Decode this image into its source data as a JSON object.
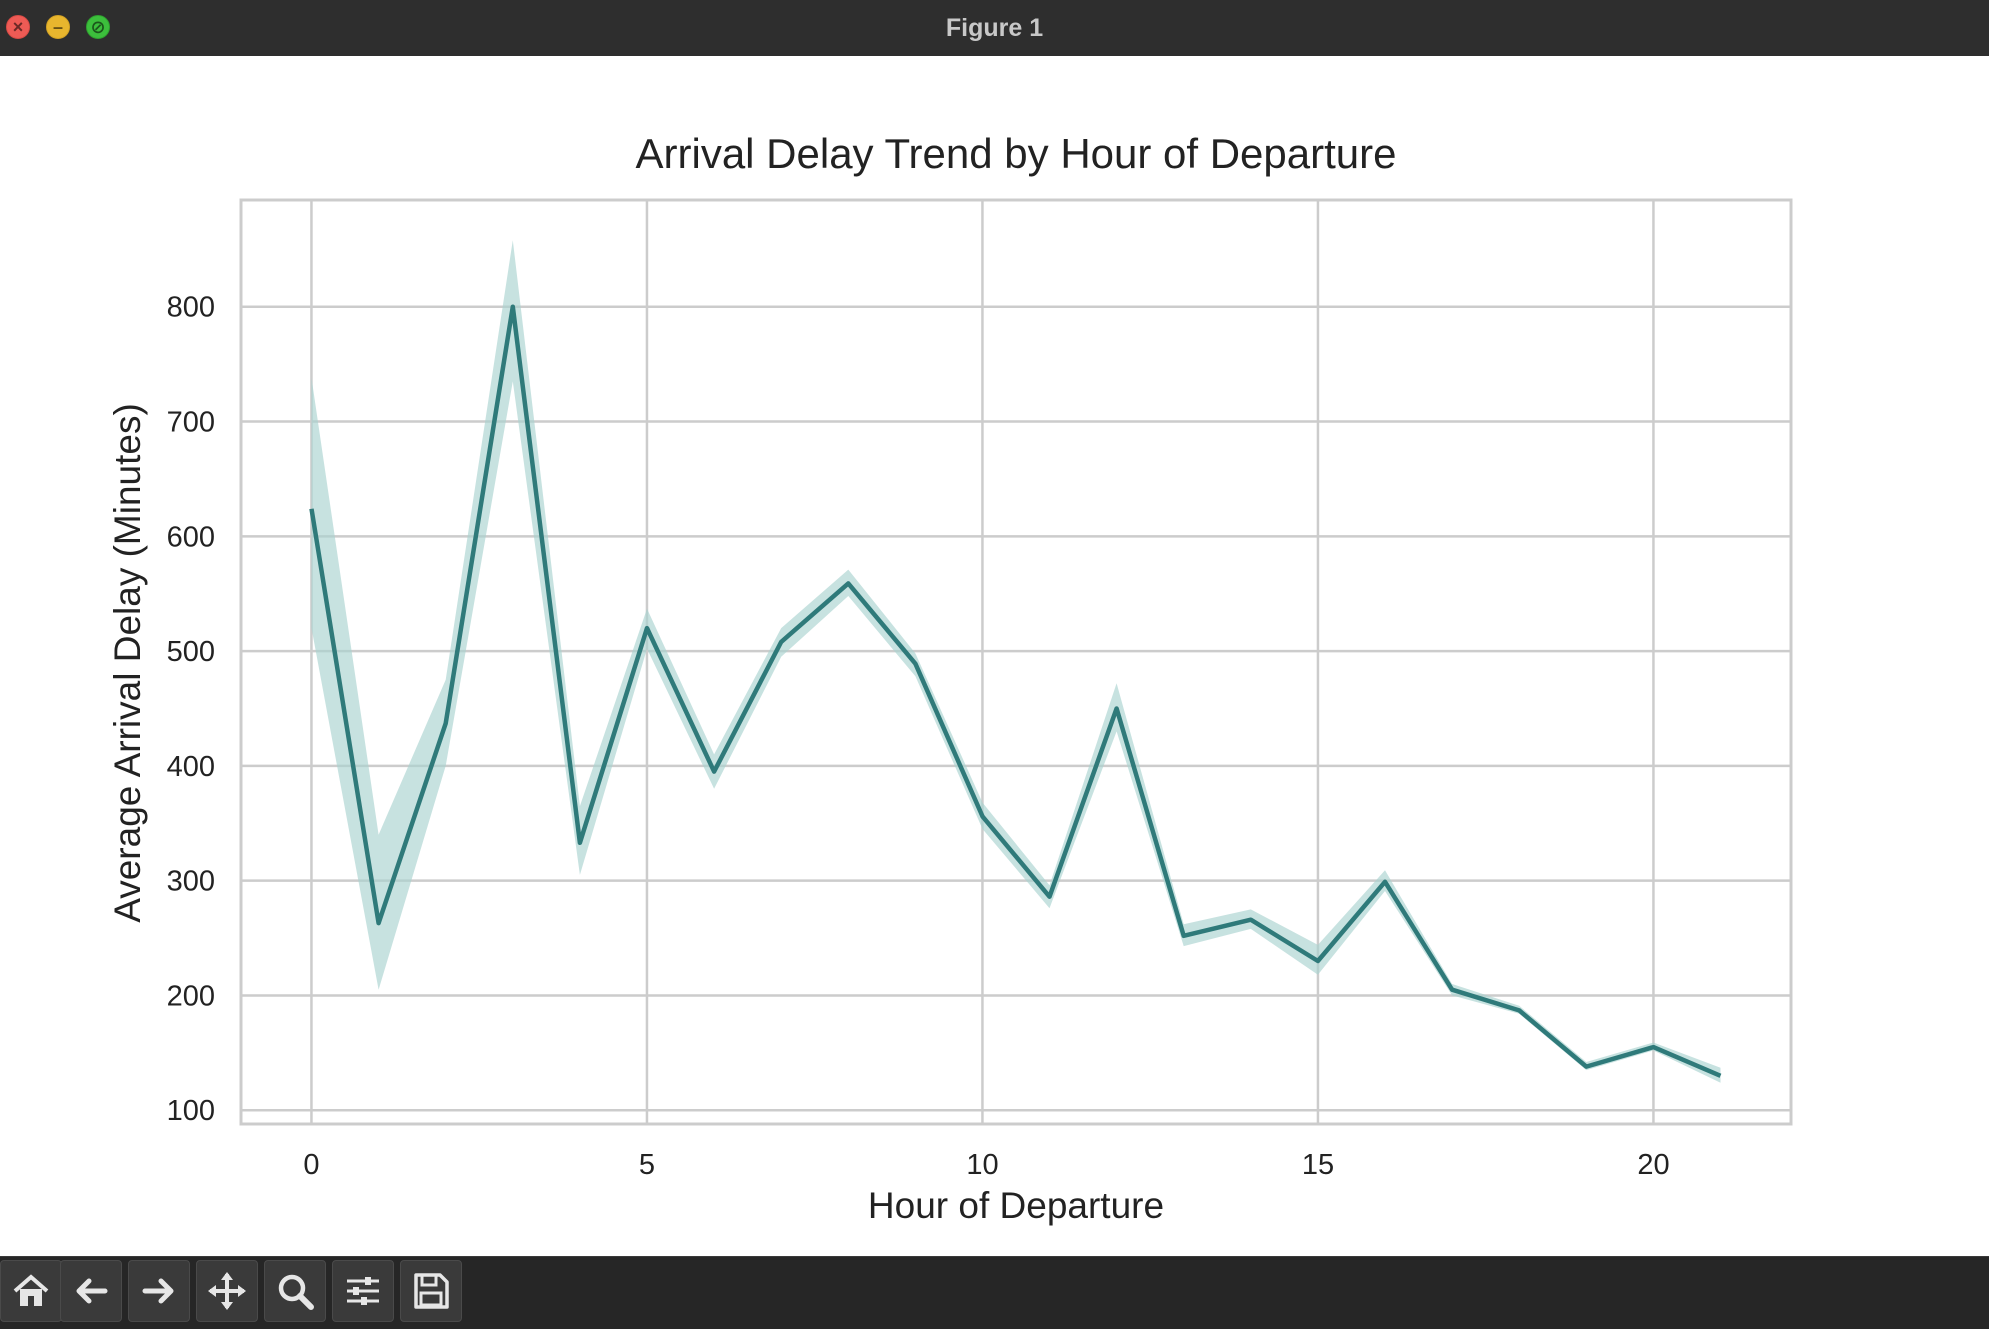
{
  "window": {
    "title": "Figure 1"
  },
  "toolbar": {
    "buttons": [
      {
        "icon": "home-icon",
        "label": "Home"
      },
      {
        "icon": "back-arrow-icon",
        "label": "Back"
      },
      {
        "icon": "forward-arrow-icon",
        "label": "Forward"
      },
      {
        "icon": "pan-move-icon",
        "label": "Pan"
      },
      {
        "icon": "zoom-magnifier-icon",
        "label": "Zoom"
      },
      {
        "icon": "configure-subplots-icon",
        "label": "Subplots"
      },
      {
        "icon": "save-floppy-icon",
        "label": "Save"
      }
    ]
  },
  "colors": {
    "line": "#2f7a7a",
    "band": "#a9d2cf",
    "grid": "#cccccc",
    "titlebar": "#2e2e2e",
    "toolbar": "#262626"
  },
  "chart_data": {
    "type": "line",
    "title": "Arrival Delay Trend by Hour of Departure",
    "xlabel": "Hour of Departure",
    "ylabel": "Average Arrival Delay (Minutes)",
    "xlim": [
      -1.05,
      22.05
    ],
    "ylim": [
      88,
      893
    ],
    "xticks": [
      0,
      5,
      10,
      15,
      20
    ],
    "yticks": [
      100,
      200,
      300,
      400,
      500,
      600,
      700,
      800
    ],
    "grid": true,
    "legend": "none",
    "x": [
      0,
      1,
      2,
      3,
      4,
      5,
      6,
      7,
      8,
      9,
      10,
      11,
      12,
      13,
      14,
      15,
      16,
      17,
      18,
      19,
      20,
      21
    ],
    "series": [
      {
        "values": [
          624,
          263,
          437,
          800,
          333,
          520,
          395,
          508,
          559,
          489,
          356,
          286,
          450,
          252,
          266,
          230,
          299,
          205,
          187,
          138,
          155,
          130
        ],
        "ci_lower": [
          520,
          205,
          400,
          735,
          305,
          502,
          380,
          495,
          548,
          478,
          345,
          276,
          430,
          243,
          258,
          218,
          291,
          200,
          184,
          135,
          152,
          124
        ],
        "ci_upper": [
          738,
          340,
          475,
          858,
          365,
          537,
          410,
          520,
          571,
          498,
          368,
          296,
          472,
          262,
          275,
          244,
          309,
          210,
          191,
          142,
          159,
          137
        ]
      }
    ]
  }
}
